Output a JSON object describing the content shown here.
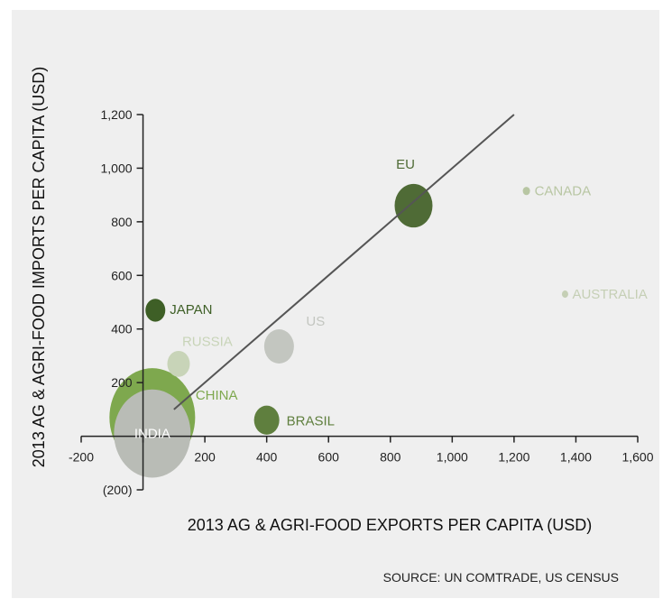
{
  "chart_data": {
    "type": "scatter",
    "subtype": "bubble",
    "xlabel": "2013 AG & AGRI-FOOD EXPORTS PER CAPITA (USD)",
    "ylabel": "2013 AG & AGRI-FOOD IMPORTS PER CAPITA (USD)",
    "xlim": [
      -200,
      1600
    ],
    "ylim": [
      -200,
      1200
    ],
    "x_ticks": [
      -200,
      0,
      200,
      400,
      600,
      800,
      1000,
      1200,
      1400,
      1600
    ],
    "x_tick_labels": [
      "-200",
      "",
      "200",
      "400",
      "600",
      "800",
      "1,000",
      "1,200",
      "1,400",
      "1,600"
    ],
    "y_ticks": [
      -200,
      0,
      200,
      400,
      600,
      800,
      1000,
      1200
    ],
    "y_tick_labels": [
      "(200)",
      "",
      "200",
      "400",
      "600",
      "800",
      "1,000",
      "1,200"
    ],
    "grid": false,
    "trendline": {
      "from": [
        100,
        100
      ],
      "to": [
        1200,
        1200
      ],
      "color": "#555555"
    },
    "points": [
      {
        "name": "CHINA",
        "x": 30,
        "y": 70,
        "size": 0.95,
        "color": "#7ea84e",
        "label_color": "#7ea84e"
      },
      {
        "name": "INDIA",
        "x": 30,
        "y": 10,
        "size": 0.85,
        "color": "#b9bcb6",
        "label_color": "#ffffff"
      },
      {
        "name": "JAPAN",
        "x": 40,
        "y": 470,
        "size": 0.22,
        "color": "#3e5f26",
        "label_color": "#3e5f26"
      },
      {
        "name": "RUSSIA",
        "x": 115,
        "y": 270,
        "size": 0.25,
        "color": "#c8d4b8",
        "label_color": "#c8d4b8"
      },
      {
        "name": "US",
        "x": 440,
        "y": 335,
        "size": 0.33,
        "color": "#c3c6c0",
        "label_color": "#c3c6c0"
      },
      {
        "name": "BRASIL",
        "x": 400,
        "y": 60,
        "size": 0.28,
        "color": "#5f7f3e",
        "label_color": "#5f7f3e"
      },
      {
        "name": "EU",
        "x": 875,
        "y": 860,
        "size": 0.42,
        "color": "#4f6b36",
        "label_color": "#4f6b36"
      },
      {
        "name": "CANADA",
        "x": 1240,
        "y": 915,
        "size": 0.08,
        "color": "#b8c6a3",
        "label_color": "#b8c6a3"
      },
      {
        "name": "AUSTRALIA",
        "x": 1365,
        "y": 530,
        "size": 0.07,
        "color": "#c5cfb5",
        "label_color": "#c5cfb5"
      }
    ]
  },
  "source": "SOURCE: UN COMTRADE, US CENSUS"
}
